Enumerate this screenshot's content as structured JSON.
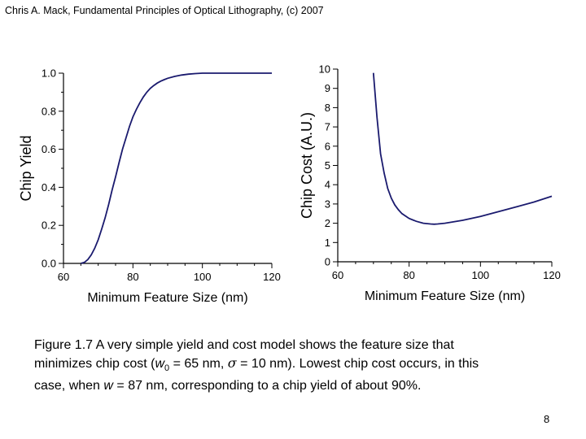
{
  "header": {
    "title": "Chris A. Mack, Fundamental Principles of Optical Lithography, (c) 2007"
  },
  "chart_data": [
    {
      "type": "line",
      "ylabel": "Chip Yield",
      "xlabel": "Minimum Feature Size (nm)",
      "xlim": [
        60,
        120
      ],
      "ylim": [
        0,
        1.0
      ],
      "xticks": [
        "60",
        "80",
        "100",
        "120"
      ],
      "yticks": [
        "0.0",
        "0.2",
        "0.4",
        "0.6",
        "0.8",
        "1.0"
      ],
      "series": [
        {
          "name": "Chip Yield",
          "x": [
            65,
            66,
            67,
            68,
            69,
            70,
            71,
            72,
            73,
            74,
            75,
            76,
            77,
            78,
            79,
            80,
            81,
            82,
            83,
            84,
            85,
            86,
            87,
            88,
            89,
            90,
            92,
            94,
            96,
            98,
            100,
            120
          ],
          "values": [
            0.0,
            0.005,
            0.02,
            0.045,
            0.08,
            0.125,
            0.18,
            0.24,
            0.31,
            0.385,
            0.455,
            0.53,
            0.6,
            0.66,
            0.72,
            0.77,
            0.81,
            0.845,
            0.875,
            0.9,
            0.92,
            0.935,
            0.948,
            0.958,
            0.966,
            0.973,
            0.983,
            0.99,
            0.995,
            0.998,
            1.0,
            1.0
          ]
        }
      ]
    },
    {
      "type": "line",
      "ylabel": "Chip Cost (A.U.)",
      "xlabel": "Minimum Feature Size (nm)",
      "xlim": [
        60,
        120
      ],
      "ylim": [
        0,
        10
      ],
      "xticks": [
        "60",
        "80",
        "100",
        "120"
      ],
      "yticks": [
        "0",
        "1",
        "2",
        "3",
        "4",
        "5",
        "6",
        "7",
        "8",
        "9",
        "10"
      ],
      "series": [
        {
          "name": "Chip Cost",
          "x": [
            70,
            71,
            72,
            73,
            74,
            75,
            76,
            77,
            78,
            80,
            82,
            84,
            86,
            87,
            88,
            90,
            95,
            100,
            105,
            110,
            115,
            120
          ],
          "values": [
            9.8,
            7.5,
            5.6,
            4.6,
            3.8,
            3.3,
            2.95,
            2.7,
            2.5,
            2.25,
            2.1,
            2.0,
            1.96,
            1.95,
            1.96,
            2.0,
            2.15,
            2.35,
            2.6,
            2.85,
            3.1,
            3.4
          ]
        }
      ]
    }
  ],
  "caption": {
    "line1": "Figure 1.7  A very simple yield and cost model shows the feature size that",
    "line2_a": "minimizes chip cost (",
    "line2_w": "w",
    "line2_sub": "0",
    "line2_b": " = 65 nm, ",
    "line2_sigma": "σ",
    "line2_c": " = 10 nm).  Lowest chip cost occurs, in this",
    "line3_a": "case, when ",
    "line3_w": "w",
    "line3_b": " = 87 nm, corresponding to a chip yield of about 90%."
  },
  "page_number": "8",
  "colors": {
    "curve": "#1a1a6e",
    "axis": "#000000"
  }
}
